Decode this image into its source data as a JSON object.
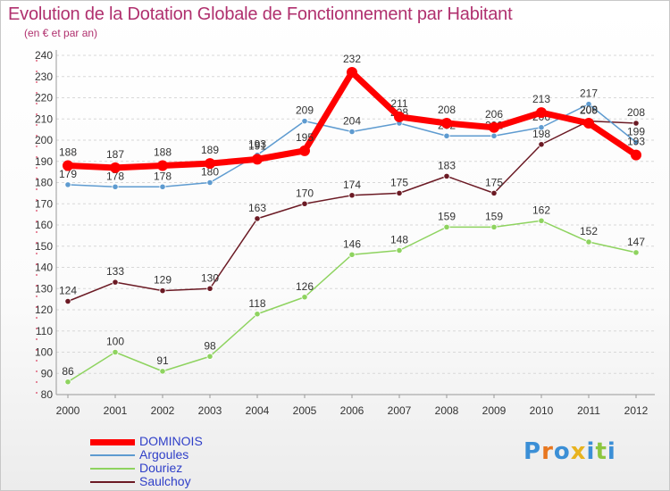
{
  "title": "Evolution de la Dotation Globale de Fonctionnement par Habitant",
  "subtitle": "(en € et par an)",
  "chart_data": {
    "type": "line",
    "title": "Evolution de la Dotation Globale de Fonctionnement par Habitant",
    "ylabel": "(en € et par an)",
    "xlabel": "",
    "ylim": [
      80,
      240
    ],
    "yticks": [
      80,
      90,
      100,
      110,
      120,
      130,
      140,
      150,
      160,
      170,
      180,
      190,
      200,
      210,
      220,
      230,
      240
    ],
    "x": [
      "2000",
      "2001",
      "2002",
      "2003",
      "2004",
      "2005",
      "2006",
      "2007",
      "2008",
      "2009",
      "2010",
      "2011",
      "2012"
    ],
    "grid": "horizontal dashed",
    "series": [
      {
        "name": "Saulchoy",
        "color": "#6b1a24",
        "values": [
          124,
          133,
          129,
          130,
          163,
          170,
          174,
          175,
          183,
          175,
          198,
          209,
          208
        ],
        "labels": [
          "124",
          "133",
          "129",
          "130",
          "163",
          "170",
          "174",
          "175",
          "183",
          "175",
          "198",
          "209",
          "208"
        ]
      },
      {
        "name": "Douriez",
        "color": "#8ed35f",
        "values": [
          86,
          100,
          91,
          98,
          118,
          126,
          146,
          148,
          159,
          159,
          162,
          152,
          147
        ],
        "labels": [
          "86",
          "100",
          "91",
          "98",
          "118",
          "126",
          "146",
          "148",
          "159",
          "159",
          "162",
          "152",
          "147"
        ]
      },
      {
        "name": "Argoules",
        "color": "#5e9bd0",
        "values": [
          179,
          178,
          178,
          180,
          193,
          209,
          204,
          208,
          202,
          202,
          206,
          217,
          199
        ],
        "labels": [
          "179",
          "178",
          "178",
          "180",
          "193",
          "209",
          "204",
          "208",
          "202",
          "202",
          "206",
          "217",
          "199"
        ]
      },
      {
        "name": "DOMINOIS",
        "color": "#ff0000",
        "values": [
          188,
          187,
          188,
          189,
          191,
          195,
          232,
          211,
          208,
          206,
          213,
          208,
          193
        ],
        "labels": [
          "188",
          "187",
          "188",
          "189",
          "191",
          "195",
          "232",
          "211",
          "208",
          "206",
          "213",
          "208",
          "193"
        ]
      }
    ]
  },
  "legend": [
    {
      "name": "DOMINOIS",
      "color": "#ff0000",
      "text_color": "#2f3fc8"
    },
    {
      "name": "Argoules",
      "color": "#5e9bd0",
      "text_color": "#2f3fc8"
    },
    {
      "name": "Douriez",
      "color": "#8ed35f",
      "text_color": "#2f3fc8"
    },
    {
      "name": "Saulchoy",
      "color": "#6b1a24",
      "text_color": "#2f3fc8"
    }
  ],
  "logo": {
    "letters": [
      "P",
      "r",
      "o",
      "x",
      "i",
      "t",
      "i"
    ],
    "colors": [
      "#3b8fd6",
      "#e8771f",
      "#3b8fd6",
      "#e8b31f",
      "#3b8fd6",
      "#8dc63f",
      "#3b8fd6"
    ]
  }
}
